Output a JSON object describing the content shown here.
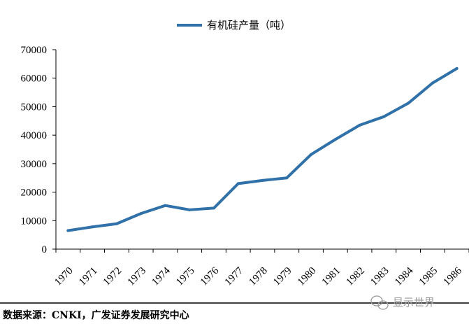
{
  "chart_data": {
    "type": "line",
    "categories": [
      "1970",
      "1971",
      "1972",
      "1973",
      "1974",
      "1975",
      "1976",
      "1977",
      "1978",
      "1979",
      "1980",
      "1981",
      "1982",
      "1983",
      "1984",
      "1985",
      "1986"
    ],
    "series": [
      {
        "name": "有机硅产量（吨）",
        "values": [
          6500,
          7800,
          8900,
          12500,
          15300,
          13800,
          14400,
          23000,
          24100,
          25000,
          33200,
          38500,
          43500,
          46500,
          51200,
          58300,
          63400
        ],
        "color": "#3071a9"
      }
    ],
    "ylim": [
      0,
      70000
    ],
    "yticks": [
      0,
      10000,
      20000,
      30000,
      40000,
      50000,
      60000,
      70000
    ],
    "grid": false,
    "legend_position": "top"
  },
  "source": "数据来源：CNKI，广发证券发展研究中心",
  "watermark": "显示世界",
  "colors": {
    "line": "#3071a9",
    "axis": "#000000",
    "watermark": "#9a9a9a"
  }
}
